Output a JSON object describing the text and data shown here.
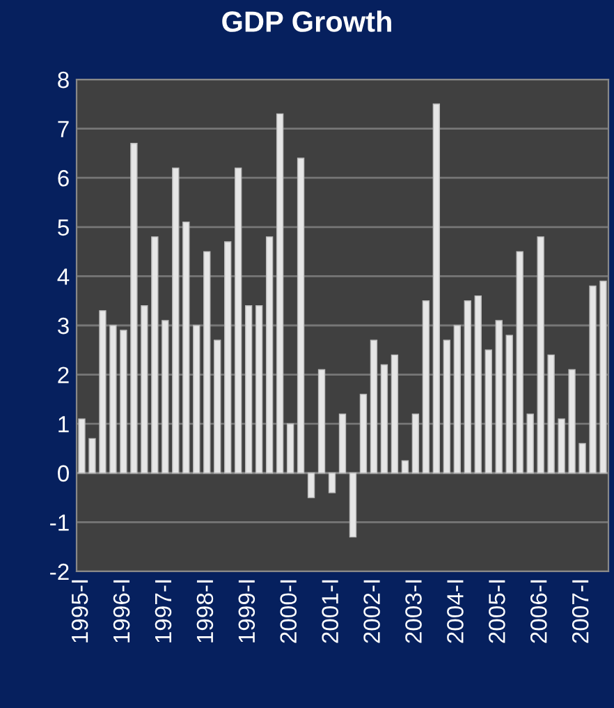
{
  "chart_data": {
    "type": "bar",
    "title": "GDP Growth",
    "categories": [
      "1995-I",
      null,
      null,
      null,
      "1996-I",
      null,
      null,
      null,
      "1997-I",
      null,
      null,
      null,
      "1998-I",
      null,
      null,
      null,
      "1999-I",
      null,
      null,
      null,
      "2000-I",
      null,
      null,
      null,
      "2001-I",
      null,
      null,
      null,
      "2002-I",
      null,
      null,
      null,
      "2003-I",
      null,
      null,
      null,
      "2004-I",
      null,
      null,
      null,
      "2005-I",
      null,
      null,
      null,
      "2006-I",
      null,
      null,
      null,
      "2007-I",
      null,
      null
    ],
    "values": [
      1.1,
      0.7,
      3.3,
      3.0,
      2.9,
      6.7,
      3.4,
      4.8,
      3.1,
      6.2,
      5.1,
      3.0,
      4.5,
      2.7,
      4.7,
      6.2,
      3.4,
      3.4,
      4.8,
      7.3,
      1.0,
      6.4,
      -0.5,
      2.1,
      -0.4,
      1.2,
      -1.3,
      1.6,
      2.7,
      2.2,
      2.4,
      0.25,
      1.2,
      3.5,
      7.5,
      2.7,
      3.0,
      3.5,
      3.6,
      2.5,
      3.1,
      2.8,
      4.5,
      1.2,
      4.8,
      2.4,
      1.1,
      2.1,
      0.6,
      3.8,
      3.9
    ],
    "color": "#e6e6e6",
    "ylim": [
      -2,
      8
    ],
    "yticks": [
      -2,
      -1,
      0,
      1,
      2,
      3,
      4,
      5,
      6,
      7,
      8
    ],
    "grid": "y"
  }
}
